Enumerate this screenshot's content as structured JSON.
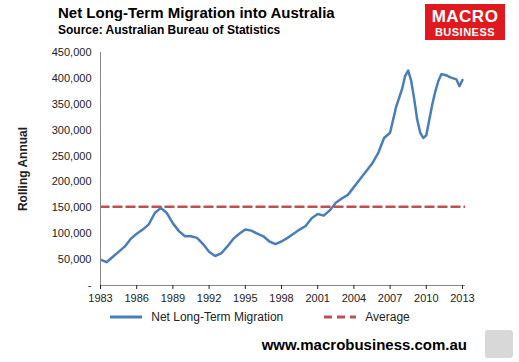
{
  "chart_data": {
    "type": "line",
    "title": "Net Long-Term Migration into Australia",
    "subtitle": "Source: Australian Bureau of Statistics",
    "logo_text": "MACRO BUSINESS",
    "footer": "www.macrobusiness.com.au",
    "y_label": "Rolling Annual",
    "x": [
      1983,
      1983.5,
      1984,
      1984.5,
      1985,
      1985.5,
      1986,
      1986.5,
      1987,
      1987.5,
      1988,
      1988.5,
      1989,
      1989.5,
      1990,
      1990.5,
      1991,
      1991.5,
      1992,
      1992.5,
      1993,
      1993.5,
      1994,
      1994.5,
      1995,
      1995.5,
      1996,
      1996.5,
      1997,
      1997.5,
      1998,
      1998.5,
      1999,
      1999.5,
      2000,
      2000.5,
      2001,
      2001.5,
      2002,
      2002.5,
      2003,
      2003.5,
      2004,
      2004.5,
      2005,
      2005.5,
      2006,
      2006.5,
      2007,
      2007.5,
      2008,
      2008.25,
      2008.5,
      2008.75,
      2009,
      2009.25,
      2009.5,
      2009.75,
      2010,
      2010.25,
      2010.5,
      2010.75,
      2011,
      2011.25,
      2011.5,
      2011.75,
      2012,
      2012.25,
      2012.5,
      2012.75,
      2013
    ],
    "series": [
      {
        "name": "Net Long-Term Migration",
        "color": "#4a7ebb",
        "line_style": "solid",
        "values": [
          50000,
          45000,
          55000,
          65000,
          75000,
          90000,
          100000,
          108000,
          118000,
          140000,
          150000,
          140000,
          120000,
          105000,
          95000,
          95000,
          92000,
          80000,
          65000,
          57000,
          62000,
          75000,
          90000,
          100000,
          108000,
          106000,
          100000,
          95000,
          85000,
          80000,
          85000,
          92000,
          100000,
          108000,
          115000,
          130000,
          138000,
          135000,
          145000,
          160000,
          168000,
          175000,
          190000,
          205000,
          220000,
          235000,
          255000,
          285000,
          295000,
          345000,
          380000,
          405000,
          415000,
          395000,
          360000,
          320000,
          295000,
          285000,
          290000,
          320000,
          350000,
          375000,
          395000,
          408000,
          407000,
          405000,
          402000,
          400000,
          398000,
          385000,
          397000
        ]
      },
      {
        "name": "Average",
        "color": "#c0504d",
        "line_style": "dashed",
        "x": [
          1983,
          2013.25
        ],
        "values": [
          152000,
          152000
        ]
      }
    ],
    "xlim": [
      1983,
      2013.25
    ],
    "xticks": [
      1983,
      1986,
      1989,
      1992,
      1995,
      1998,
      2001,
      2004,
      2007,
      2010,
      2013
    ],
    "ylim": [
      0,
      450000
    ],
    "yticks": [
      {
        "value": 0,
        "label": "-"
      },
      {
        "value": 50000,
        "label": "50,000"
      },
      {
        "value": 100000,
        "label": "100,000"
      },
      {
        "value": 150000,
        "label": "150,000"
      },
      {
        "value": 200000,
        "label": "200,000"
      },
      {
        "value": 250000,
        "label": "250,000"
      },
      {
        "value": 300000,
        "label": "300,000"
      },
      {
        "value": 350000,
        "label": "350,000"
      },
      {
        "value": 400000,
        "label": "400,000"
      },
      {
        "value": 450000,
        "label": "450,000"
      }
    ],
    "grid": false,
    "legend": "bottom"
  }
}
